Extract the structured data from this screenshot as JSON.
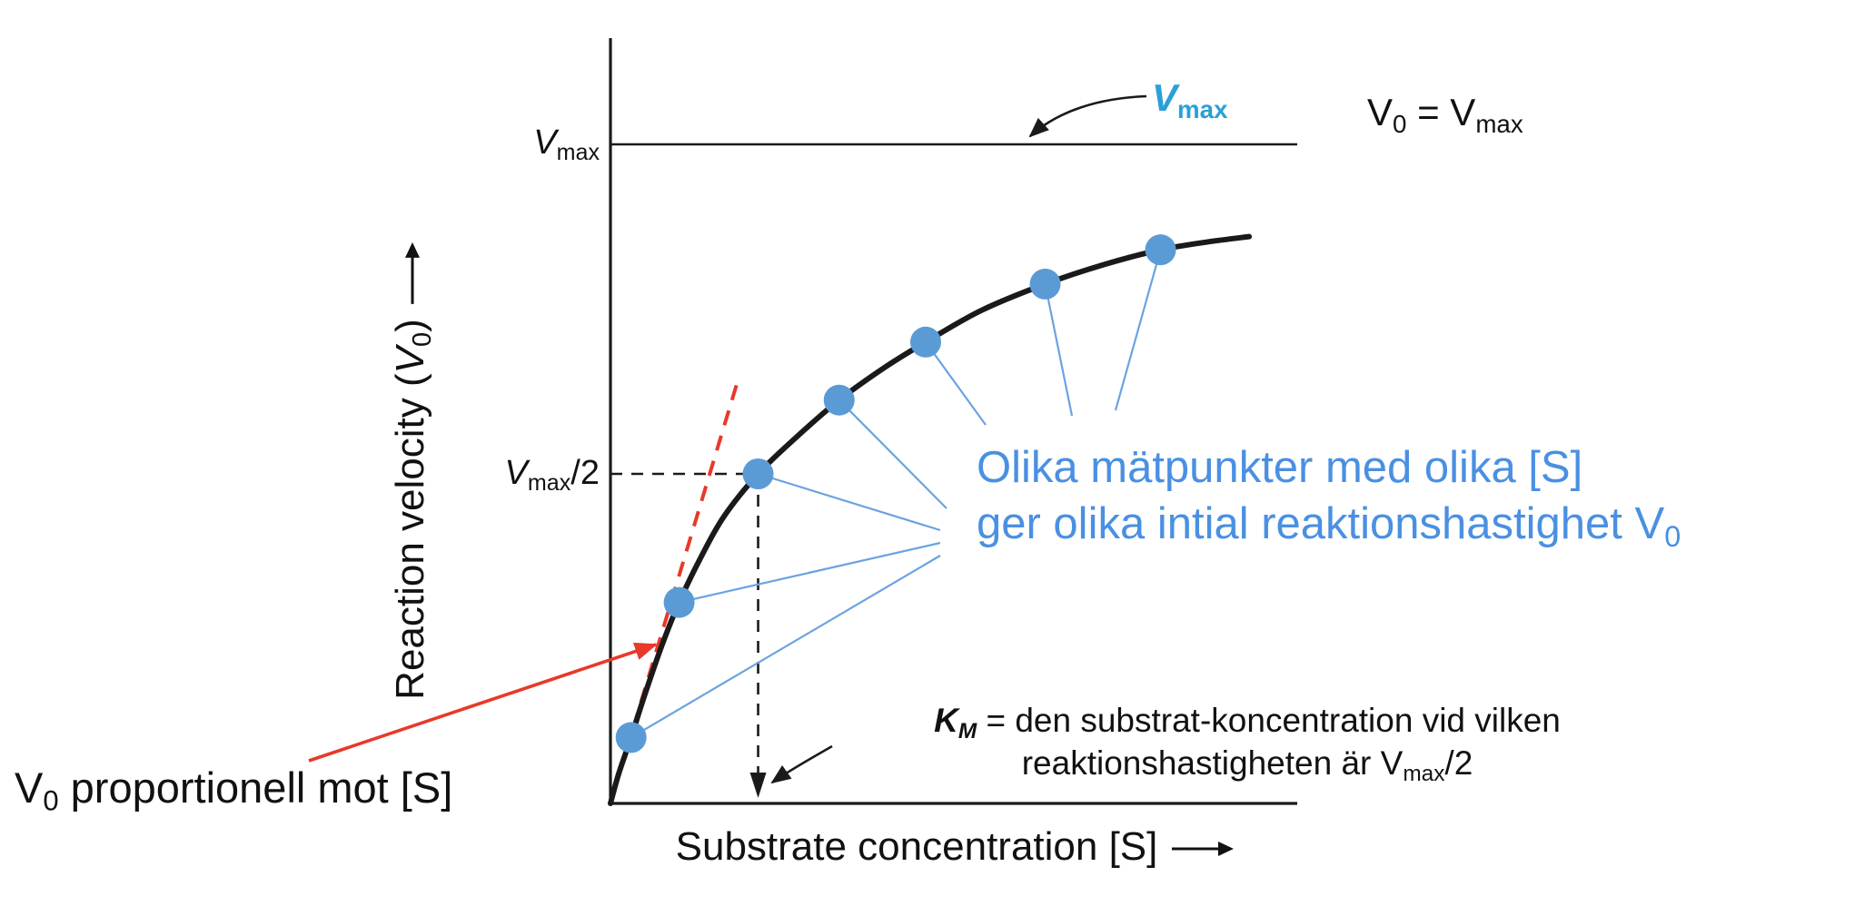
{
  "figure": {
    "background": "#ffffff",
    "colors": {
      "axis": "#1a1a1a",
      "curve": "#1a1a1a",
      "data_point": "#5b9bd5",
      "connector": "#6ba3e0",
      "tangent": "#e8392a",
      "callout_blue": "#2b9fd8",
      "note_blue": "#4a90e2",
      "text": "#111111"
    }
  },
  "chart_data": {
    "type": "line",
    "xlabel": "Substrate concentration [S]",
    "ylabel": "Reaction velocity (V0)",
    "xlim": [
      0,
      1
    ],
    "ylim": [
      0,
      1.16
    ],
    "grid": false,
    "axis_arrows": true,
    "y_ticks": [
      "Vmax",
      "Vmax/2"
    ],
    "vmax": 1.0,
    "vmax_half": 0.5,
    "km_fraction": 0.215,
    "curve_points": [
      [
        0,
        0
      ],
      [
        0.012,
        0.045
      ],
      [
        0.03,
        0.1
      ],
      [
        0.05,
        0.165
      ],
      [
        0.075,
        0.24
      ],
      [
        0.1,
        0.305
      ],
      [
        0.13,
        0.37
      ],
      [
        0.165,
        0.435
      ],
      [
        0.215,
        0.5
      ],
      [
        0.27,
        0.555
      ],
      [
        0.333,
        0.612
      ],
      [
        0.4,
        0.662
      ],
      [
        0.459,
        0.7
      ],
      [
        0.54,
        0.748
      ],
      [
        0.633,
        0.788
      ],
      [
        0.72,
        0.818
      ],
      [
        0.801,
        0.84
      ],
      [
        0.87,
        0.852
      ],
      [
        0.93,
        0.86
      ]
    ],
    "data_points": [
      [
        0.03,
        0.1
      ],
      [
        0.1,
        0.305
      ],
      [
        0.215,
        0.5
      ],
      [
        0.333,
        0.612
      ],
      [
        0.459,
        0.7
      ],
      [
        0.633,
        0.788
      ],
      [
        0.801,
        0.84
      ]
    ],
    "tangent_line": {
      "from": [
        0,
        0
      ],
      "to": [
        0.185,
        0.64
      ],
      "style": "dashed"
    }
  },
  "labels": {
    "y_axis": {
      "pre": "Reaction velocity (",
      "v": "V",
      "v_sub": "0",
      "post": ")"
    },
    "x_axis": {
      "text": "Substrate concentration [S]"
    },
    "vmax_tick": {
      "v": "V",
      "sub": "max"
    },
    "vmax_half_tick": {
      "v": "V",
      "sub": "max",
      "suffix": "/2"
    },
    "vmax_callout": {
      "v": "V",
      "sub": "max"
    },
    "v0_equals_vmax": {
      "v1": "V",
      "v1_sub": "0",
      "eq": " = V",
      "v2_sub": "max"
    },
    "note_line1": "Olika mätpunkter med olika [S]",
    "note_line2": {
      "text": "ger olika intial reaktionshastighet V",
      "sub": "0"
    },
    "km_line1": {
      "k": "K",
      "k_sub": "M",
      "text": " = den substrat-koncentration vid vilken"
    },
    "km_line2": {
      "pre": "reaktionshastigheten är V",
      "sub": "max",
      "post": "/2"
    },
    "v0_proportional": {
      "v": "V",
      "v_sub": "0",
      "text": " proportionell mot [S]"
    }
  }
}
